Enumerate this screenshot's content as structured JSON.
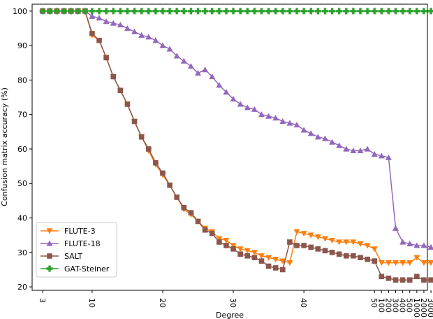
{
  "chart_data": {
    "type": "line",
    "title": "",
    "xlabel": "Degree",
    "ylabel": "Confusion matrix accuracy (%)",
    "ylim": [
      19,
      102
    ],
    "xlim": [
      1.5,
      57.5
    ],
    "grid": false,
    "legend_position": "lower-left",
    "x_ticks": [
      {
        "pos": 3,
        "label": "3"
      },
      {
        "pos": 10,
        "label": "10"
      },
      {
        "pos": 20,
        "label": "20"
      },
      {
        "pos": 30,
        "label": "30"
      },
      {
        "pos": 40,
        "label": "40"
      },
      {
        "pos": 50,
        "label": "50"
      },
      {
        "pos": 51,
        "label": "100"
      },
      {
        "pos": 52,
        "label": "200"
      },
      {
        "pos": 53,
        "label": "300"
      },
      {
        "pos": 54,
        "label": "400"
      },
      {
        "pos": 55,
        "label": "500"
      },
      {
        "pos": 56,
        "label": "1000"
      },
      {
        "pos": 57,
        "label": "2000"
      },
      {
        "pos": 58,
        "label": "3000"
      }
    ],
    "y_ticks": [
      20,
      30,
      40,
      50,
      60,
      70,
      80,
      90,
      100
    ],
    "x": [
      3,
      4,
      5,
      6,
      7,
      8,
      9,
      10,
      11,
      12,
      13,
      14,
      15,
      16,
      17,
      18,
      19,
      20,
      21,
      22,
      23,
      24,
      25,
      26,
      27,
      28,
      29,
      30,
      31,
      32,
      33,
      34,
      35,
      36,
      37,
      38,
      39,
      40,
      41,
      42,
      43,
      44,
      45,
      46,
      47,
      48,
      49,
      50,
      51,
      52,
      53,
      54,
      55,
      56,
      57,
      58
    ],
    "series": [
      {
        "name": "FLUTE-3",
        "color": "#ff7f0e",
        "marker": "triangle-down",
        "values": [
          100,
          100,
          100,
          100,
          100,
          100,
          100,
          93,
          91.5,
          86.5,
          81,
          77,
          73,
          68,
          63.5,
          59.5,
          55.5,
          52.5,
          49.5,
          46,
          42.5,
          41,
          39,
          37,
          36,
          34,
          33.5,
          32,
          31,
          30.5,
          30,
          29,
          28.5,
          28,
          27.5,
          27,
          36,
          35.5,
          35,
          34.5,
          34,
          33.5,
          33,
          33,
          33,
          32.5,
          32,
          31,
          27,
          27,
          27,
          27,
          27,
          28.5,
          27,
          27
        ]
      },
      {
        "name": "FLUTE-18",
        "color": "#9467bd",
        "marker": "triangle-up",
        "values": [
          100,
          100,
          100,
          100,
          100,
          100,
          100,
          98.5,
          98,
          97,
          96.5,
          96,
          95,
          94,
          93,
          92.5,
          91.5,
          90,
          89,
          87,
          85.5,
          84,
          82,
          83,
          81,
          78.5,
          76.5,
          74.5,
          73,
          72,
          71.5,
          70,
          69.5,
          69,
          68,
          67.5,
          67,
          65.5,
          64.5,
          63.5,
          63,
          62,
          61,
          60,
          59.5,
          59.5,
          60,
          58.5,
          58,
          57.5,
          37,
          33,
          32.5,
          32,
          32,
          31.5
        ]
      },
      {
        "name": "SALT",
        "color": "#8c564b",
        "marker": "square",
        "values": [
          100,
          100,
          100,
          100,
          100,
          100,
          100,
          93.5,
          91.5,
          86.5,
          81,
          77,
          73,
          68,
          63.5,
          60,
          56,
          53,
          49.5,
          46,
          43,
          41.5,
          39,
          36.5,
          35.5,
          33,
          32,
          31,
          29.5,
          29,
          28.5,
          27.5,
          26,
          25.5,
          25,
          33,
          32,
          32,
          31.5,
          31,
          30.5,
          30,
          29.5,
          29,
          29,
          28.5,
          28,
          27.5,
          23,
          22.5,
          22,
          22,
          22,
          23,
          22,
          22
        ]
      },
      {
        "name": "GAT-Steiner",
        "color": "#2ca02c",
        "marker": "plus",
        "values": [
          100,
          100,
          100,
          100,
          100,
          100,
          100,
          100,
          100,
          100,
          100,
          100,
          100,
          100,
          100,
          100,
          100,
          100,
          100,
          100,
          100,
          100,
          100,
          100,
          100,
          100,
          100,
          100,
          100,
          100,
          100,
          100,
          100,
          100,
          100,
          100,
          100,
          100,
          100,
          100,
          100,
          100,
          100,
          100,
          100,
          100,
          100,
          100,
          100,
          100,
          100,
          100,
          100,
          100,
          100,
          100
        ]
      }
    ]
  }
}
